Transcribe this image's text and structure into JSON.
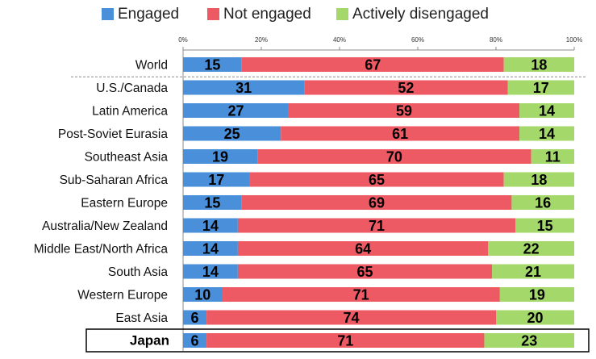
{
  "chart_data": {
    "type": "bar",
    "stacked": true,
    "orientation": "horizontal",
    "xlim": [
      0,
      100
    ],
    "x_ticks": [
      "0%",
      "20%",
      "40%",
      "60%",
      "80%",
      "100%"
    ],
    "legend_position": "top",
    "categories": [
      "World",
      "U.S./Canada",
      "Latin America",
      "Post-Soviet Eurasia",
      "Southeast Asia",
      "Sub-Saharan Africa",
      "Eastern Europe",
      "Australia/New Zealand",
      "Middle East/North Africa",
      "South Asia",
      "Western Europe",
      "East Asia",
      "Japan"
    ],
    "highlighted_category": "Japan",
    "series": [
      {
        "name": "Engaged",
        "color": "#4a8fd9",
        "values": [
          15,
          31,
          27,
          25,
          19,
          17,
          15,
          14,
          14,
          14,
          10,
          6,
          6
        ]
      },
      {
        "name": "Not engaged",
        "color": "#ee5a64",
        "values": [
          67,
          52,
          59,
          61,
          70,
          65,
          69,
          71,
          64,
          65,
          71,
          74,
          71
        ]
      },
      {
        "name": "Actively disengaged",
        "color": "#a4d86a",
        "values": [
          18,
          17,
          14,
          14,
          11,
          18,
          16,
          15,
          22,
          21,
          19,
          20,
          23
        ]
      }
    ]
  }
}
